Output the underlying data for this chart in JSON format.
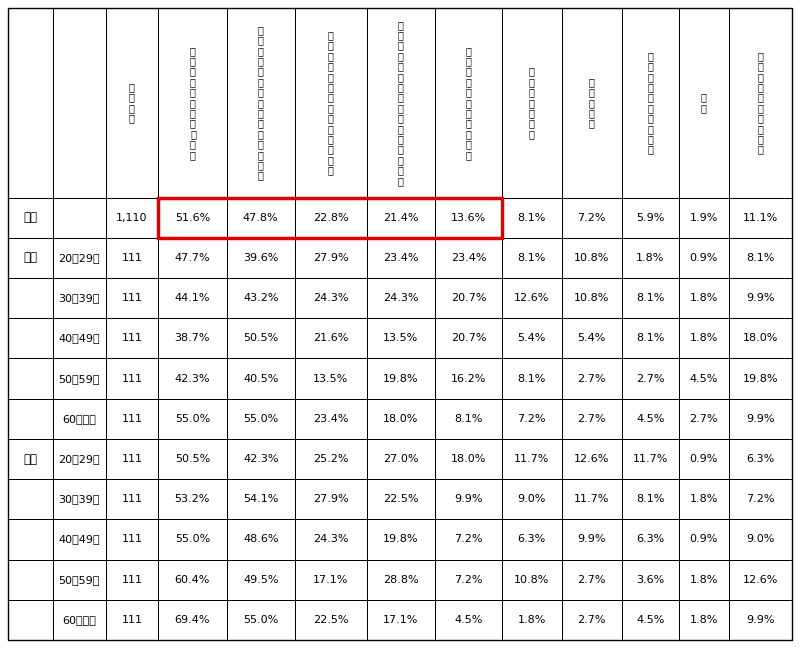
{
  "col_headers": [
    "回\n答\n者\n数",
    "食\n料\n品\n・\n日\n用\n品\n等\n の\n購\n入",
    "電\n子\nマ\nネ\nー\n・\n他\nポ\nイ\nン\nト\nへ\nの\n交\n換",
    "ギ\nフ\nト\n・\nク\nー\nポ\nン\nへ\nの\n引\nき\n換\nえ",
    "公\n共\n料\n金\n（\n水\n道\n光\n熱\n費\n等\n）\nの\n支\n払\nい",
    "株\n式\nや\n投\n資\n信\n託\nへ\nの\n投\n資",
    "保\n険\n料\nの\n支\n払\nい",
    "家\n賃\n支\n払\nい",
    "家\n族\n・\n友\n人\n等\nへ\nの\n送\n付",
    "寄\n付",
    "あ\nて\nは\nま\nる\nも\nの\nが\nな\nい"
  ],
  "rows": [
    {
      "group": "全体",
      "subgroup": "",
      "values": [
        "1,110",
        "51.6%",
        "47.8%",
        "22.8%",
        "21.4%",
        "13.6%",
        "8.1%",
        "7.2%",
        "5.9%",
        "1.9%",
        "11.1%"
      ]
    },
    {
      "group": "男性",
      "subgroup": "20〜29歳",
      "values": [
        "111",
        "47.7%",
        "39.6%",
        "27.9%",
        "23.4%",
        "23.4%",
        "8.1%",
        "10.8%",
        "1.8%",
        "0.9%",
        "8.1%"
      ]
    },
    {
      "group": "",
      "subgroup": "30〜39歳",
      "values": [
        "111",
        "44.1%",
        "43.2%",
        "24.3%",
        "24.3%",
        "20.7%",
        "12.6%",
        "10.8%",
        "8.1%",
        "1.8%",
        "9.9%"
      ]
    },
    {
      "group": "",
      "subgroup": "40〜49歳",
      "values": [
        "111",
        "38.7%",
        "50.5%",
        "21.6%",
        "13.5%",
        "20.7%",
        "5.4%",
        "5.4%",
        "8.1%",
        "1.8%",
        "18.0%"
      ]
    },
    {
      "group": "",
      "subgroup": "50〜59歳",
      "values": [
        "111",
        "42.3%",
        "40.5%",
        "13.5%",
        "19.8%",
        "16.2%",
        "8.1%",
        "2.7%",
        "2.7%",
        "4.5%",
        "19.8%"
      ]
    },
    {
      "group": "",
      "subgroup": "60歳以上",
      "values": [
        "111",
        "55.0%",
        "55.0%",
        "23.4%",
        "18.0%",
        "8.1%",
        "7.2%",
        "2.7%",
        "4.5%",
        "2.7%",
        "9.9%"
      ]
    },
    {
      "group": "女性",
      "subgroup": "20〜29歳",
      "values": [
        "111",
        "50.5%",
        "42.3%",
        "25.2%",
        "27.0%",
        "18.0%",
        "11.7%",
        "12.6%",
        "11.7%",
        "0.9%",
        "6.3%"
      ]
    },
    {
      "group": "",
      "subgroup": "30〜39歳",
      "values": [
        "111",
        "53.2%",
        "54.1%",
        "27.9%",
        "22.5%",
        "9.9%",
        "9.0%",
        "11.7%",
        "8.1%",
        "1.8%",
        "7.2%"
      ]
    },
    {
      "group": "",
      "subgroup": "40〜49歳",
      "values": [
        "111",
        "55.0%",
        "48.6%",
        "24.3%",
        "19.8%",
        "7.2%",
        "6.3%",
        "9.9%",
        "6.3%",
        "0.9%",
        "9.0%"
      ]
    },
    {
      "group": "",
      "subgroup": "50〜59歳",
      "values": [
        "111",
        "60.4%",
        "49.5%",
        "17.1%",
        "28.8%",
        "7.2%",
        "10.8%",
        "2.7%",
        "3.6%",
        "1.8%",
        "12.6%"
      ]
    },
    {
      "group": "",
      "subgroup": "60歳以上",
      "values": [
        "111",
        "69.4%",
        "55.0%",
        "22.5%",
        "17.1%",
        "4.5%",
        "1.8%",
        "2.7%",
        "4.5%",
        "1.8%",
        "9.9%"
      ]
    }
  ],
  "highlight_cols_xi": [
    3,
    4,
    5,
    6,
    7
  ],
  "highlight_row_yi": 1,
  "bg_color": "#ffffff",
  "border_color": "#000000",
  "highlight_border_color": "#e00000",
  "text_color": "#000000",
  "header_fontsize": 7.0,
  "cell_fontsize": 8.0,
  "group_fontsize": 8.5
}
